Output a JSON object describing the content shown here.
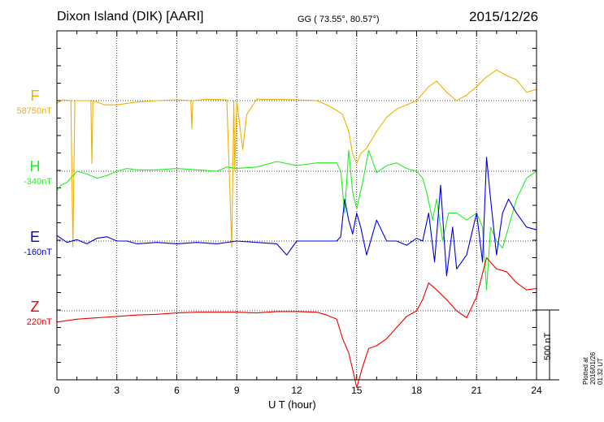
{
  "header": {
    "station": "Dixon Island (DIK)  [AARI]",
    "coords": "GG ( 73.55°,  80.57°)",
    "date": "2015/12/26"
  },
  "axis": {
    "xlabel": "U T (hour)",
    "xticks": [
      "0",
      "3",
      "6",
      "9",
      "12",
      "15",
      "18",
      "21",
      "24"
    ]
  },
  "scale": {
    "label": "500 nT"
  },
  "footer": {
    "plotted": "Plotted at 2016/01/26 01:32 UT"
  },
  "components": [
    {
      "letter": "F",
      "base": "58750nT",
      "color": "#f0b000"
    },
    {
      "letter": "H",
      "base": "-340nT",
      "color": "#22ee22"
    },
    {
      "letter": "E",
      "base": "-160nT",
      "color": "#0000dd"
    },
    {
      "letter": "Z",
      "base": "220nT",
      "color": "#ee0000"
    }
  ],
  "chart_data": {
    "type": "line",
    "title": "Dixon Island (DIK)  [AARI]",
    "xlabel": "U T (hour)",
    "ylabel": "",
    "xlim": [
      0,
      24
    ],
    "x_unit": "hour (UT)",
    "y_unit": "nT, offset from baseline",
    "scale_bar_nT": 500,
    "grid": true,
    "series": [
      {
        "name": "F",
        "baseline": "58750nT",
        "color": "#f0b000",
        "points": [
          [
            0,
            -20
          ],
          [
            0.3,
            5
          ],
          [
            0.7,
            0
          ],
          [
            0.8,
            -1050
          ],
          [
            0.9,
            0
          ],
          [
            1.7,
            0
          ],
          [
            1.75,
            -450
          ],
          [
            1.8,
            0
          ],
          [
            2.4,
            -30
          ],
          [
            3,
            -30
          ],
          [
            4,
            -10
          ],
          [
            5,
            0
          ],
          [
            6,
            5
          ],
          [
            6.7,
            0
          ],
          [
            6.75,
            -200
          ],
          [
            6.8,
            0
          ],
          [
            7.5,
            10
          ],
          [
            8.5,
            5
          ],
          [
            8.75,
            -1050
          ],
          [
            8.85,
            0
          ],
          [
            8.9,
            -500
          ],
          [
            9.0,
            0
          ],
          [
            9.3,
            -350
          ],
          [
            9.5,
            -100
          ],
          [
            10,
            10
          ],
          [
            11,
            10
          ],
          [
            12,
            5
          ],
          [
            13,
            0
          ],
          [
            13.5,
            -30
          ],
          [
            14,
            -70
          ],
          [
            14.3,
            -100
          ],
          [
            14.6,
            -220
          ],
          [
            14.8,
            -380
          ],
          [
            15,
            -450
          ],
          [
            15.2,
            -380
          ],
          [
            15.5,
            -340
          ],
          [
            16,
            -220
          ],
          [
            16.5,
            -120
          ],
          [
            17,
            -60
          ],
          [
            17.5,
            -30
          ],
          [
            18,
            0
          ],
          [
            18.3,
            50
          ],
          [
            18.6,
            100
          ],
          [
            19,
            140
          ],
          [
            19.5,
            60
          ],
          [
            20,
            0
          ],
          [
            20.5,
            40
          ],
          [
            21,
            100
          ],
          [
            21.5,
            170
          ],
          [
            22,
            220
          ],
          [
            22.5,
            180
          ],
          [
            23,
            150
          ],
          [
            23.5,
            60
          ],
          [
            24,
            80
          ]
        ]
      },
      {
        "name": "H",
        "baseline": "-340nT",
        "color": "#22ee22",
        "points": [
          [
            0,
            -140
          ],
          [
            0.2,
            -100
          ],
          [
            0.5,
            -80
          ],
          [
            1,
            0
          ],
          [
            1.5,
            -20
          ],
          [
            2,
            -50
          ],
          [
            2.5,
            -30
          ],
          [
            3,
            0
          ],
          [
            3.5,
            20
          ],
          [
            4,
            10
          ],
          [
            5,
            10
          ],
          [
            6,
            20
          ],
          [
            7,
            10
          ],
          [
            8,
            0
          ],
          [
            8.5,
            30
          ],
          [
            9,
            20
          ],
          [
            10,
            30
          ],
          [
            11,
            70
          ],
          [
            12,
            40
          ],
          [
            13,
            60
          ],
          [
            14,
            60
          ],
          [
            14.2,
            0
          ],
          [
            14.4,
            -300
          ],
          [
            14.6,
            150
          ],
          [
            14.8,
            -150
          ],
          [
            15,
            -270
          ],
          [
            15.3,
            -80
          ],
          [
            15.6,
            150
          ],
          [
            16,
            -10
          ],
          [
            16.5,
            40
          ],
          [
            17,
            60
          ],
          [
            17.5,
            20
          ],
          [
            18,
            0
          ],
          [
            18.3,
            -50
          ],
          [
            18.5,
            -150
          ],
          [
            18.8,
            -350
          ],
          [
            19,
            -200
          ],
          [
            19.3,
            -500
          ],
          [
            19.6,
            -300
          ],
          [
            20,
            -300
          ],
          [
            20.5,
            -350
          ],
          [
            21,
            -300
          ],
          [
            21.3,
            -400
          ],
          [
            21.5,
            -850
          ],
          [
            21.7,
            -400
          ],
          [
            22,
            -500
          ],
          [
            22.3,
            -550
          ],
          [
            22.6,
            -400
          ],
          [
            23,
            -200
          ],
          [
            23.5,
            -50
          ],
          [
            24,
            0
          ]
        ]
      },
      {
        "name": "E",
        "baseline": "-160nT",
        "color": "#0000dd",
        "points": [
          [
            0,
            40
          ],
          [
            0.5,
            -10
          ],
          [
            1,
            10
          ],
          [
            1.5,
            -20
          ],
          [
            2,
            20
          ],
          [
            2.5,
            30
          ],
          [
            3,
            0
          ],
          [
            3.5,
            0
          ],
          [
            4,
            -20
          ],
          [
            5,
            -10
          ],
          [
            6,
            -20
          ],
          [
            7,
            -10
          ],
          [
            8,
            -20
          ],
          [
            9,
            0
          ],
          [
            10,
            -10
          ],
          [
            11,
            -20
          ],
          [
            11.5,
            -100
          ],
          [
            12,
            0
          ],
          [
            13,
            0
          ],
          [
            14,
            0
          ],
          [
            14.2,
            30
          ],
          [
            14.4,
            300
          ],
          [
            14.6,
            150
          ],
          [
            14.8,
            50
          ],
          [
            15,
            200
          ],
          [
            15.2,
            100
          ],
          [
            15.5,
            -100
          ],
          [
            16,
            150
          ],
          [
            16.5,
            0
          ],
          [
            17,
            0
          ],
          [
            17.5,
            -30
          ],
          [
            18,
            20
          ],
          [
            18.3,
            0
          ],
          [
            18.6,
            200
          ],
          [
            18.9,
            -150
          ],
          [
            19.2,
            400
          ],
          [
            19.5,
            -250
          ],
          [
            19.8,
            100
          ],
          [
            20,
            -200
          ],
          [
            20.5,
            -100
          ],
          [
            21,
            200
          ],
          [
            21.3,
            -150
          ],
          [
            21.5,
            600
          ],
          [
            21.7,
            300
          ],
          [
            22,
            -100
          ],
          [
            22.3,
            200
          ],
          [
            22.6,
            300
          ],
          [
            23,
            200
          ],
          [
            23.5,
            100
          ],
          [
            24,
            80
          ]
        ]
      },
      {
        "name": "Z",
        "baseline": "220nT",
        "color": "#ee0000",
        "points": [
          [
            0,
            -80
          ],
          [
            1,
            -60
          ],
          [
            2,
            -50
          ],
          [
            3,
            -40
          ],
          [
            4,
            -30
          ],
          [
            5,
            -25
          ],
          [
            6,
            -15
          ],
          [
            7,
            -10
          ],
          [
            8,
            -10
          ],
          [
            9,
            -10
          ],
          [
            10,
            -15
          ],
          [
            11,
            -5
          ],
          [
            12,
            -5
          ],
          [
            13,
            -10
          ],
          [
            13.5,
            -30
          ],
          [
            14,
            -60
          ],
          [
            14.3,
            -200
          ],
          [
            14.6,
            -300
          ],
          [
            14.8,
            -420
          ],
          [
            15,
            -550
          ],
          [
            15.3,
            -400
          ],
          [
            15.6,
            -270
          ],
          [
            16,
            -250
          ],
          [
            16.5,
            -200
          ],
          [
            17,
            -120
          ],
          [
            17.5,
            -40
          ],
          [
            18,
            0
          ],
          [
            18.3,
            80
          ],
          [
            18.6,
            200
          ],
          [
            19,
            150
          ],
          [
            19.5,
            80
          ],
          [
            20,
            0
          ],
          [
            20.5,
            -50
          ],
          [
            21,
            100
          ],
          [
            21.5,
            380
          ],
          [
            22,
            300
          ],
          [
            22.5,
            280
          ],
          [
            23,
            200
          ],
          [
            23.5,
            150
          ],
          [
            24,
            160
          ]
        ]
      }
    ]
  }
}
